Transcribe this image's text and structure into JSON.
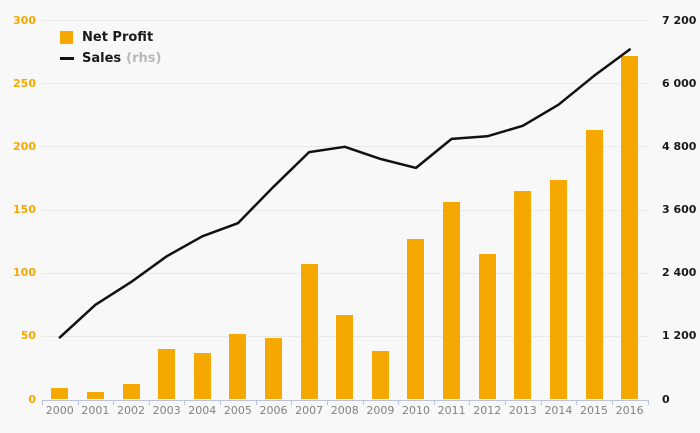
{
  "chart_data": {
    "type": "bar+line combo",
    "title": "",
    "categories": [
      "2000",
      "2001",
      "2002",
      "2003",
      "2004",
      "2005",
      "2006",
      "2007",
      "2008",
      "2009",
      "2010",
      "2011",
      "2012",
      "2013",
      "2014",
      "2015",
      "2016"
    ],
    "series": [
      {
        "name": "Net Profit",
        "type": "bar",
        "axis": "left",
        "color": "#F5A800",
        "values": [
          9,
          6,
          12,
          40,
          37,
          52,
          49,
          107,
          67,
          38,
          127,
          156,
          115,
          165,
          174,
          213,
          272
        ]
      },
      {
        "name": "Sales",
        "legend_suffix": "(rhs)",
        "type": "line",
        "axis": "right",
        "color": "#111111",
        "values": [
          1180,
          1800,
          2230,
          2720,
          3100,
          3350,
          4040,
          4700,
          4800,
          4570,
          4400,
          4950,
          5000,
          5200,
          5600,
          6150,
          6650
        ]
      }
    ],
    "left_axis": {
      "min": 0,
      "max": 300,
      "step": 50,
      "tick_values": [
        0,
        50,
        100,
        150,
        200,
        250,
        300
      ],
      "tick_labels": [
        "0",
        "50",
        "100",
        "150",
        "200",
        "250",
        "300"
      ],
      "label_color": "#F5A800"
    },
    "right_axis": {
      "min": 0,
      "max": 7200,
      "step": 1200,
      "tick_values": [
        0,
        1200,
        2400,
        3600,
        4800,
        6000,
        7200
      ],
      "tick_labels": [
        "0",
        "1 200",
        "2 400",
        "3 600",
        "4 800",
        "6 000",
        "7 200"
      ],
      "label_color": "#1a1a1a"
    },
    "grid": true,
    "legend_position": "top-left"
  },
  "colors": {
    "background": "#f8f8f8",
    "gridline": "#e9e9e9",
    "axis": "#b9c3dc",
    "bar": "#F5A800",
    "line": "#111111",
    "legend_text": "#1a1a1a",
    "legend_suffix": "#b8b8b8",
    "x_label": "#828282"
  }
}
